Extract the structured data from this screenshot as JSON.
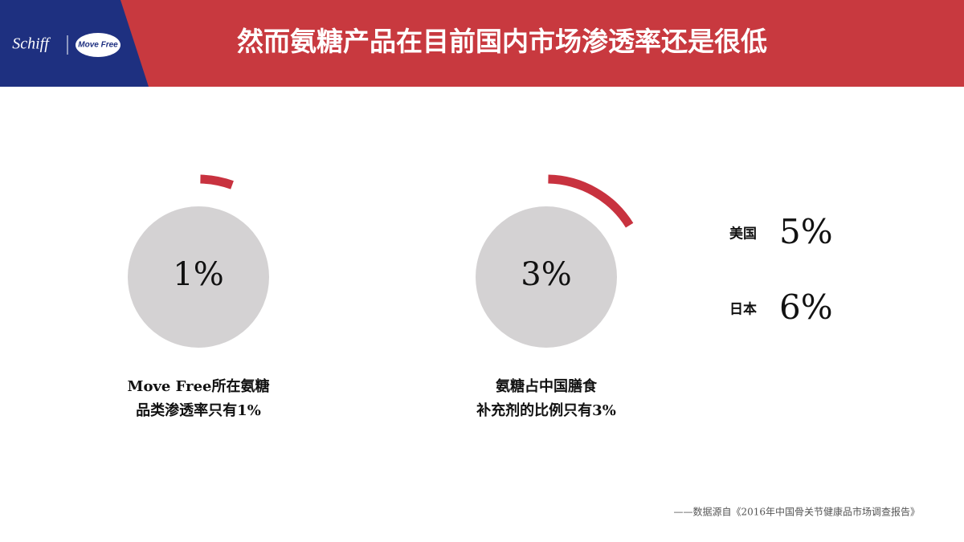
{
  "header": {
    "logo_left": "Schiff",
    "logo_right": "Move Free",
    "title": "然而氨糖产品在目前国内市场渗透率还是很低"
  },
  "gauges": [
    {
      "value": 1,
      "value_label": "1%",
      "caption": [
        "Move Free所在氨糖",
        "品类渗透率只有1%"
      ],
      "arc_color": "#c8323f",
      "circle_color": "#d4d2d3"
    },
    {
      "value": 3,
      "value_label": "3%",
      "caption": [
        "氨糖占中国膳食",
        "补充剂的比例只有3%"
      ],
      "arc_color": "#c8323f",
      "circle_color": "#d4d2d3"
    }
  ],
  "comparisons": [
    {
      "country": "美国",
      "value": 5,
      "value_label": "5%"
    },
    {
      "country": "日本",
      "value": 6,
      "value_label": "6%"
    }
  ],
  "source": "——数据源自《2016年中国骨关节健康品市场调查报告》"
}
